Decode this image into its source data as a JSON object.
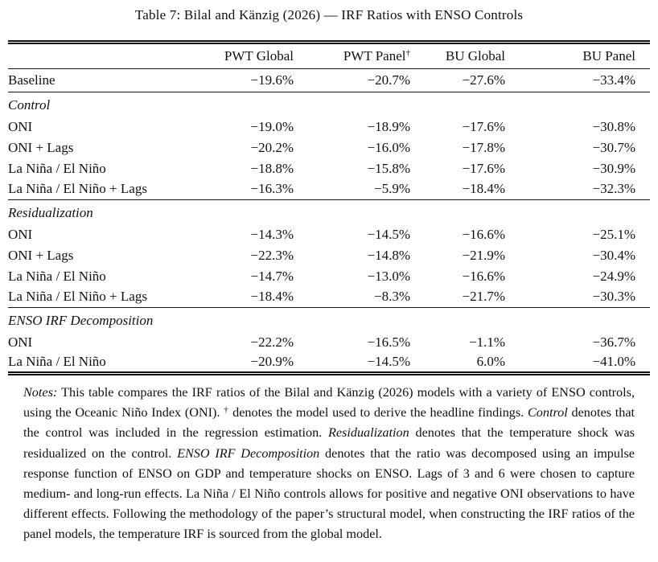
{
  "title": "Table 7: Bilal and Känzig (2026) — IRF Ratios with ENSO Controls",
  "table": {
    "columns": [
      {
        "label": "PWT Global",
        "sup": ""
      },
      {
        "label": "PWT Panel",
        "sup": "†"
      },
      {
        "label": "BU Global",
        "sup": ""
      },
      {
        "label": "BU Panel",
        "sup": ""
      }
    ],
    "baseline": {
      "label": "Baseline",
      "values": [
        "−19.6%",
        "−20.7%",
        "−27.6%",
        "−33.4%"
      ]
    },
    "sections": [
      {
        "heading": "Control",
        "rows": [
          {
            "label": "ONI",
            "values": [
              "−19.0%",
              "−18.9%",
              "−17.6%",
              "−30.8%"
            ]
          },
          {
            "label": "ONI + Lags",
            "values": [
              "−20.2%",
              "−16.0%",
              "−17.8%",
              "−30.7%"
            ]
          },
          {
            "label": "La Niña / El Niño",
            "values": [
              "−18.8%",
              "−15.8%",
              "−17.6%",
              "−30.9%"
            ]
          },
          {
            "label": "La Niña / El Niño + Lags",
            "values": [
              "−16.3%",
              "−5.9%",
              "−18.4%",
              "−32.3%"
            ]
          }
        ]
      },
      {
        "heading": "Residualization",
        "rows": [
          {
            "label": "ONI",
            "values": [
              "−14.3%",
              "−14.5%",
              "−16.6%",
              "−25.1%"
            ]
          },
          {
            "label": "ONI + Lags",
            "values": [
              "−22.3%",
              "−14.8%",
              "−21.9%",
              "−30.4%"
            ]
          },
          {
            "label": "La Niña / El Niño",
            "values": [
              "−14.7%",
              "−13.0%",
              "−16.6%",
              "−24.9%"
            ]
          },
          {
            "label": "La Niña / El Niño + Lags",
            "values": [
              "−18.4%",
              "−8.3%",
              "−21.7%",
              "−30.3%"
            ]
          }
        ]
      },
      {
        "heading": "ENSO IRF Decomposition",
        "rows": [
          {
            "label": "ONI",
            "values": [
              "−22.2%",
              "−16.5%",
              "−1.1%",
              "−36.7%"
            ]
          },
          {
            "label": "La Niña / El Niño",
            "values": [
              "−20.9%",
              "−14.5%",
              "6.0%",
              "−41.0%"
            ]
          }
        ]
      }
    ]
  },
  "notes": {
    "segments": [
      {
        "text": "Notes:",
        "style": "italic"
      },
      {
        "text": " This table compares the IRF ratios of the Bilal and Känzig (2026) models with a variety of ENSO controls, using the Oceanic Niño Index (ONI). ",
        "style": "normal"
      },
      {
        "text": "†",
        "style": "sup"
      },
      {
        "text": " denotes the model used to derive the headline findings. ",
        "style": "normal"
      },
      {
        "text": "Control",
        "style": "italic"
      },
      {
        "text": " denotes that the control was included in the regression estimation. ",
        "style": "normal"
      },
      {
        "text": "Residualization",
        "style": "italic"
      },
      {
        "text": " denotes that the temperature shock was residualized on the control. ",
        "style": "normal"
      },
      {
        "text": "ENSO IRF Decomposition",
        "style": "italic"
      },
      {
        "text": " denotes that the ratio was decomposed using an impulse response function of ENSO on GDP and temperature shocks on ENSO. Lags of 3 and 6 were chosen to capture medium- and long-run effects. La Niña / El Niño controls allows for positive and negative ONI observations to have different effects. Following the methodology of the paper’s structural model, when constructing the IRF ratios of the panel models, the temperature IRF is sourced from the global model.",
        "style": "normal"
      }
    ]
  },
  "colors": {
    "text": "#111111",
    "rule": "#111111",
    "background": "#ffffff"
  }
}
